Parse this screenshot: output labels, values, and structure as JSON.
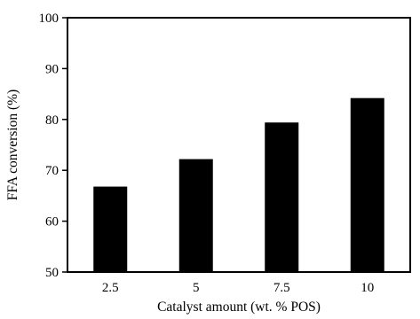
{
  "chart_data": {
    "type": "bar",
    "categories": [
      "2.5",
      "5",
      "7.5",
      "10"
    ],
    "values": [
      66.8,
      72.2,
      79.4,
      84.2
    ],
    "xlabel": "Catalyst amount (wt. % POS)",
    "ylabel": "FFA conversion (%)",
    "ylim": [
      50,
      100
    ],
    "yticks": [
      "50",
      "60",
      "70",
      "80",
      "90",
      "100"
    ],
    "grid": false,
    "legend": "none",
    "bar_color": "#000000",
    "axis_color": "#000000"
  }
}
